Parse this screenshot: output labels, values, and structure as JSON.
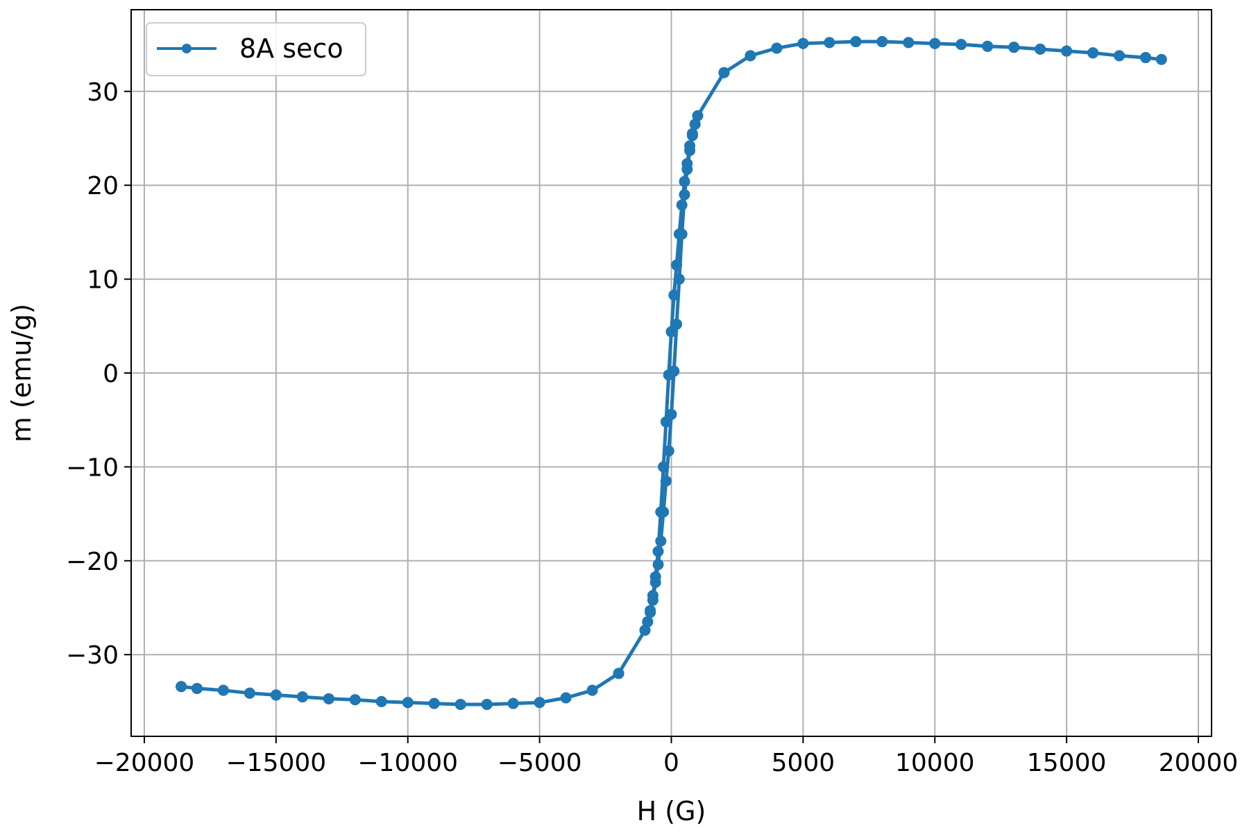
{
  "chart_data": {
    "type": "line",
    "title": "",
    "xlabel": "H (G)",
    "ylabel": "m (emu/g)",
    "xlim": [
      -20500,
      20500
    ],
    "ylim": [
      -38.7,
      38.7
    ],
    "x_ticks": [
      -20000,
      -15000,
      -10000,
      -5000,
      0,
      5000,
      10000,
      15000,
      20000
    ],
    "y_ticks": [
      -30,
      -20,
      -10,
      0,
      10,
      20,
      30
    ],
    "grid": true,
    "legend_position": "top-left",
    "series": [
      {
        "name": "8A seco",
        "color": "#1f77b4",
        "marker": "circle",
        "x": [
          -18600,
          -18000,
          -17000,
          -16000,
          -15000,
          -14000,
          -13000,
          -12000,
          -11000,
          -10000,
          -9000,
          -8000,
          -7000,
          -6000,
          -5000,
          -4000,
          -3000,
          -2000,
          -1000,
          -900,
          -800,
          -700,
          -600,
          -500,
          -400,
          -300,
          -200,
          -100,
          0,
          100,
          200,
          300,
          400,
          500,
          600,
          700,
          800,
          900,
          1000,
          2000,
          3000,
          4000,
          5000,
          6000,
          7000,
          8000,
          9000,
          10000,
          11000,
          12000,
          13000,
          14000,
          15000,
          16000,
          17000,
          18000,
          18600,
          18000,
          17000,
          16000,
          15000,
          14000,
          13000,
          12000,
          11000,
          10000,
          9000,
          8000,
          7000,
          6000,
          5000,
          4000,
          3000,
          2000,
          1000,
          900,
          800,
          700,
          600,
          500,
          400,
          300,
          200,
          100,
          0,
          -100,
          -200,
          -300,
          -400,
          -500,
          -600,
          -700,
          -800,
          -900,
          -1000,
          -2000,
          -3000,
          -4000,
          -5000,
          -6000,
          -7000,
          -8000,
          -9000,
          -10000,
          -11000,
          -12000,
          -13000,
          -14000,
          -15000,
          -16000,
          -17000,
          -18000,
          -18600
        ],
        "y": [
          -33.4,
          -33.6,
          -33.8,
          -34.1,
          -34.3,
          -34.5,
          -34.7,
          -34.8,
          -35.0,
          -35.1,
          -35.2,
          -35.3,
          -35.3,
          -35.2,
          -35.1,
          -34.6,
          -33.8,
          -32.0,
          -27.4,
          -26.5,
          -25.5,
          -24.2,
          -22.3,
          -20.4,
          -17.9,
          -14.8,
          -11.5,
          -8.3,
          -4.4,
          0.2,
          5.2,
          10.0,
          14.8,
          19.0,
          21.7,
          23.7,
          25.3,
          26.5,
          27.4,
          32.0,
          33.8,
          34.6,
          35.1,
          35.2,
          35.3,
          35.3,
          35.2,
          35.1,
          35.0,
          34.8,
          34.7,
          34.5,
          34.3,
          34.1,
          33.8,
          33.6,
          33.4,
          33.6,
          33.8,
          34.1,
          34.3,
          34.5,
          34.7,
          34.8,
          35.0,
          35.1,
          35.2,
          35.3,
          35.3,
          35.2,
          35.1,
          34.6,
          33.8,
          32.0,
          27.4,
          26.5,
          25.5,
          24.2,
          22.3,
          20.4,
          17.9,
          14.8,
          11.5,
          8.3,
          4.4,
          -0.2,
          -5.2,
          -10.0,
          -14.8,
          -19.0,
          -21.7,
          -23.7,
          -25.3,
          -26.5,
          -27.4,
          -32.0,
          -33.8,
          -34.6,
          -35.1,
          -35.2,
          -35.3,
          -35.3,
          -35.2,
          -35.1,
          -35.0,
          -34.8,
          -34.7,
          -34.5,
          -34.3,
          -34.1,
          -33.8,
          -33.6,
          -33.4
        ]
      }
    ]
  }
}
